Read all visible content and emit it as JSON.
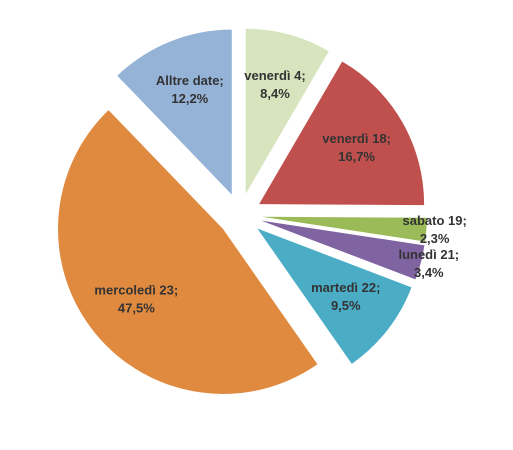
{
  "chart_data": {
    "type": "pie",
    "categories": [
      "venerdì 4;",
      "venerdì 18;",
      "sabato 19;",
      "lunedì 21;",
      "martedì 22;",
      "mercoledì 23;",
      "Alltre date;"
    ],
    "values": [
      8.4,
      16.7,
      2.3,
      3.4,
      9.5,
      47.5,
      12.2
    ],
    "value_labels": [
      "8,4%",
      "16,7%",
      "2,3%",
      "3,4%",
      "9,5%",
      "47,5%",
      "12,2%"
    ],
    "colors": [
      "#d7e4bd",
      "#c0504d",
      "#9bbb59",
      "#8064a2",
      "#4bacc6",
      "#e08a40",
      "#95b3d7"
    ]
  }
}
